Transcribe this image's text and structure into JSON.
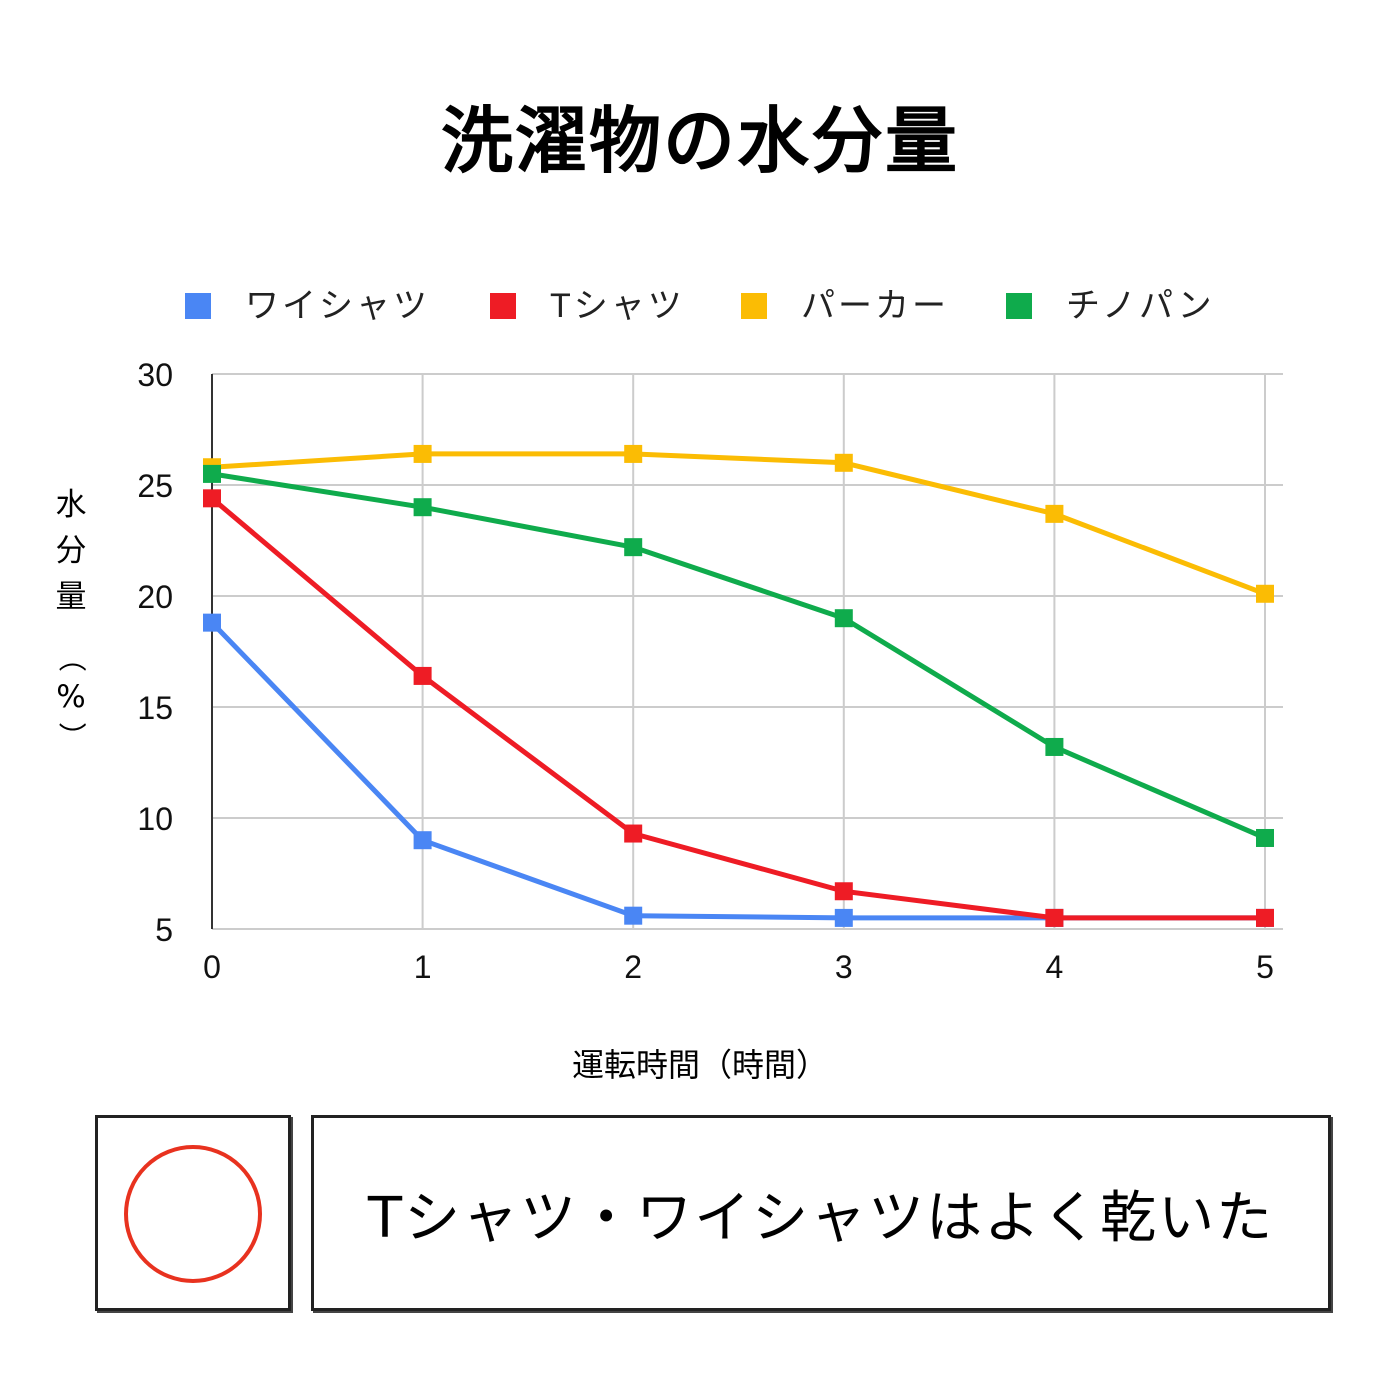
{
  "chart_data": {
    "type": "line",
    "title": "洗濯物の水分量",
    "xlabel": "運転時間（時間）",
    "ylabel_chars": [
      "水",
      "分",
      "量",
      "（",
      "%",
      "）"
    ],
    "x": [
      0,
      1,
      2,
      3,
      4,
      5
    ],
    "x_ticks": [
      "0",
      "1",
      "2",
      "3",
      "4",
      "5"
    ],
    "y_ticks": [
      "5",
      "10",
      "15",
      "20",
      "25",
      "30"
    ],
    "ylim": [
      5,
      30
    ],
    "xlim": [
      0,
      5
    ],
    "grid": true,
    "legend_position": "top",
    "series": [
      {
        "name": "ワイシャツ",
        "color": "#4a86f4",
        "values": [
          18.8,
          9.0,
          5.6,
          5.5,
          5.5,
          5.5
        ]
      },
      {
        "name": "Tシャツ",
        "color": "#ee1c25",
        "values": [
          24.4,
          16.4,
          9.3,
          6.7,
          5.5,
          5.5
        ]
      },
      {
        "name": "パーカー",
        "color": "#fbbc04",
        "values": [
          25.8,
          26.4,
          26.4,
          26.0,
          23.7,
          20.1
        ]
      },
      {
        "name": "チノパン",
        "color": "#0fab4c",
        "values": [
          25.5,
          24.0,
          22.2,
          19.0,
          13.2,
          9.1
        ]
      }
    ]
  },
  "result": {
    "mark": "circle-mark",
    "mark_color": "#e8321f",
    "comment": "Tシャツ・ワイシャツはよく乾いた"
  }
}
